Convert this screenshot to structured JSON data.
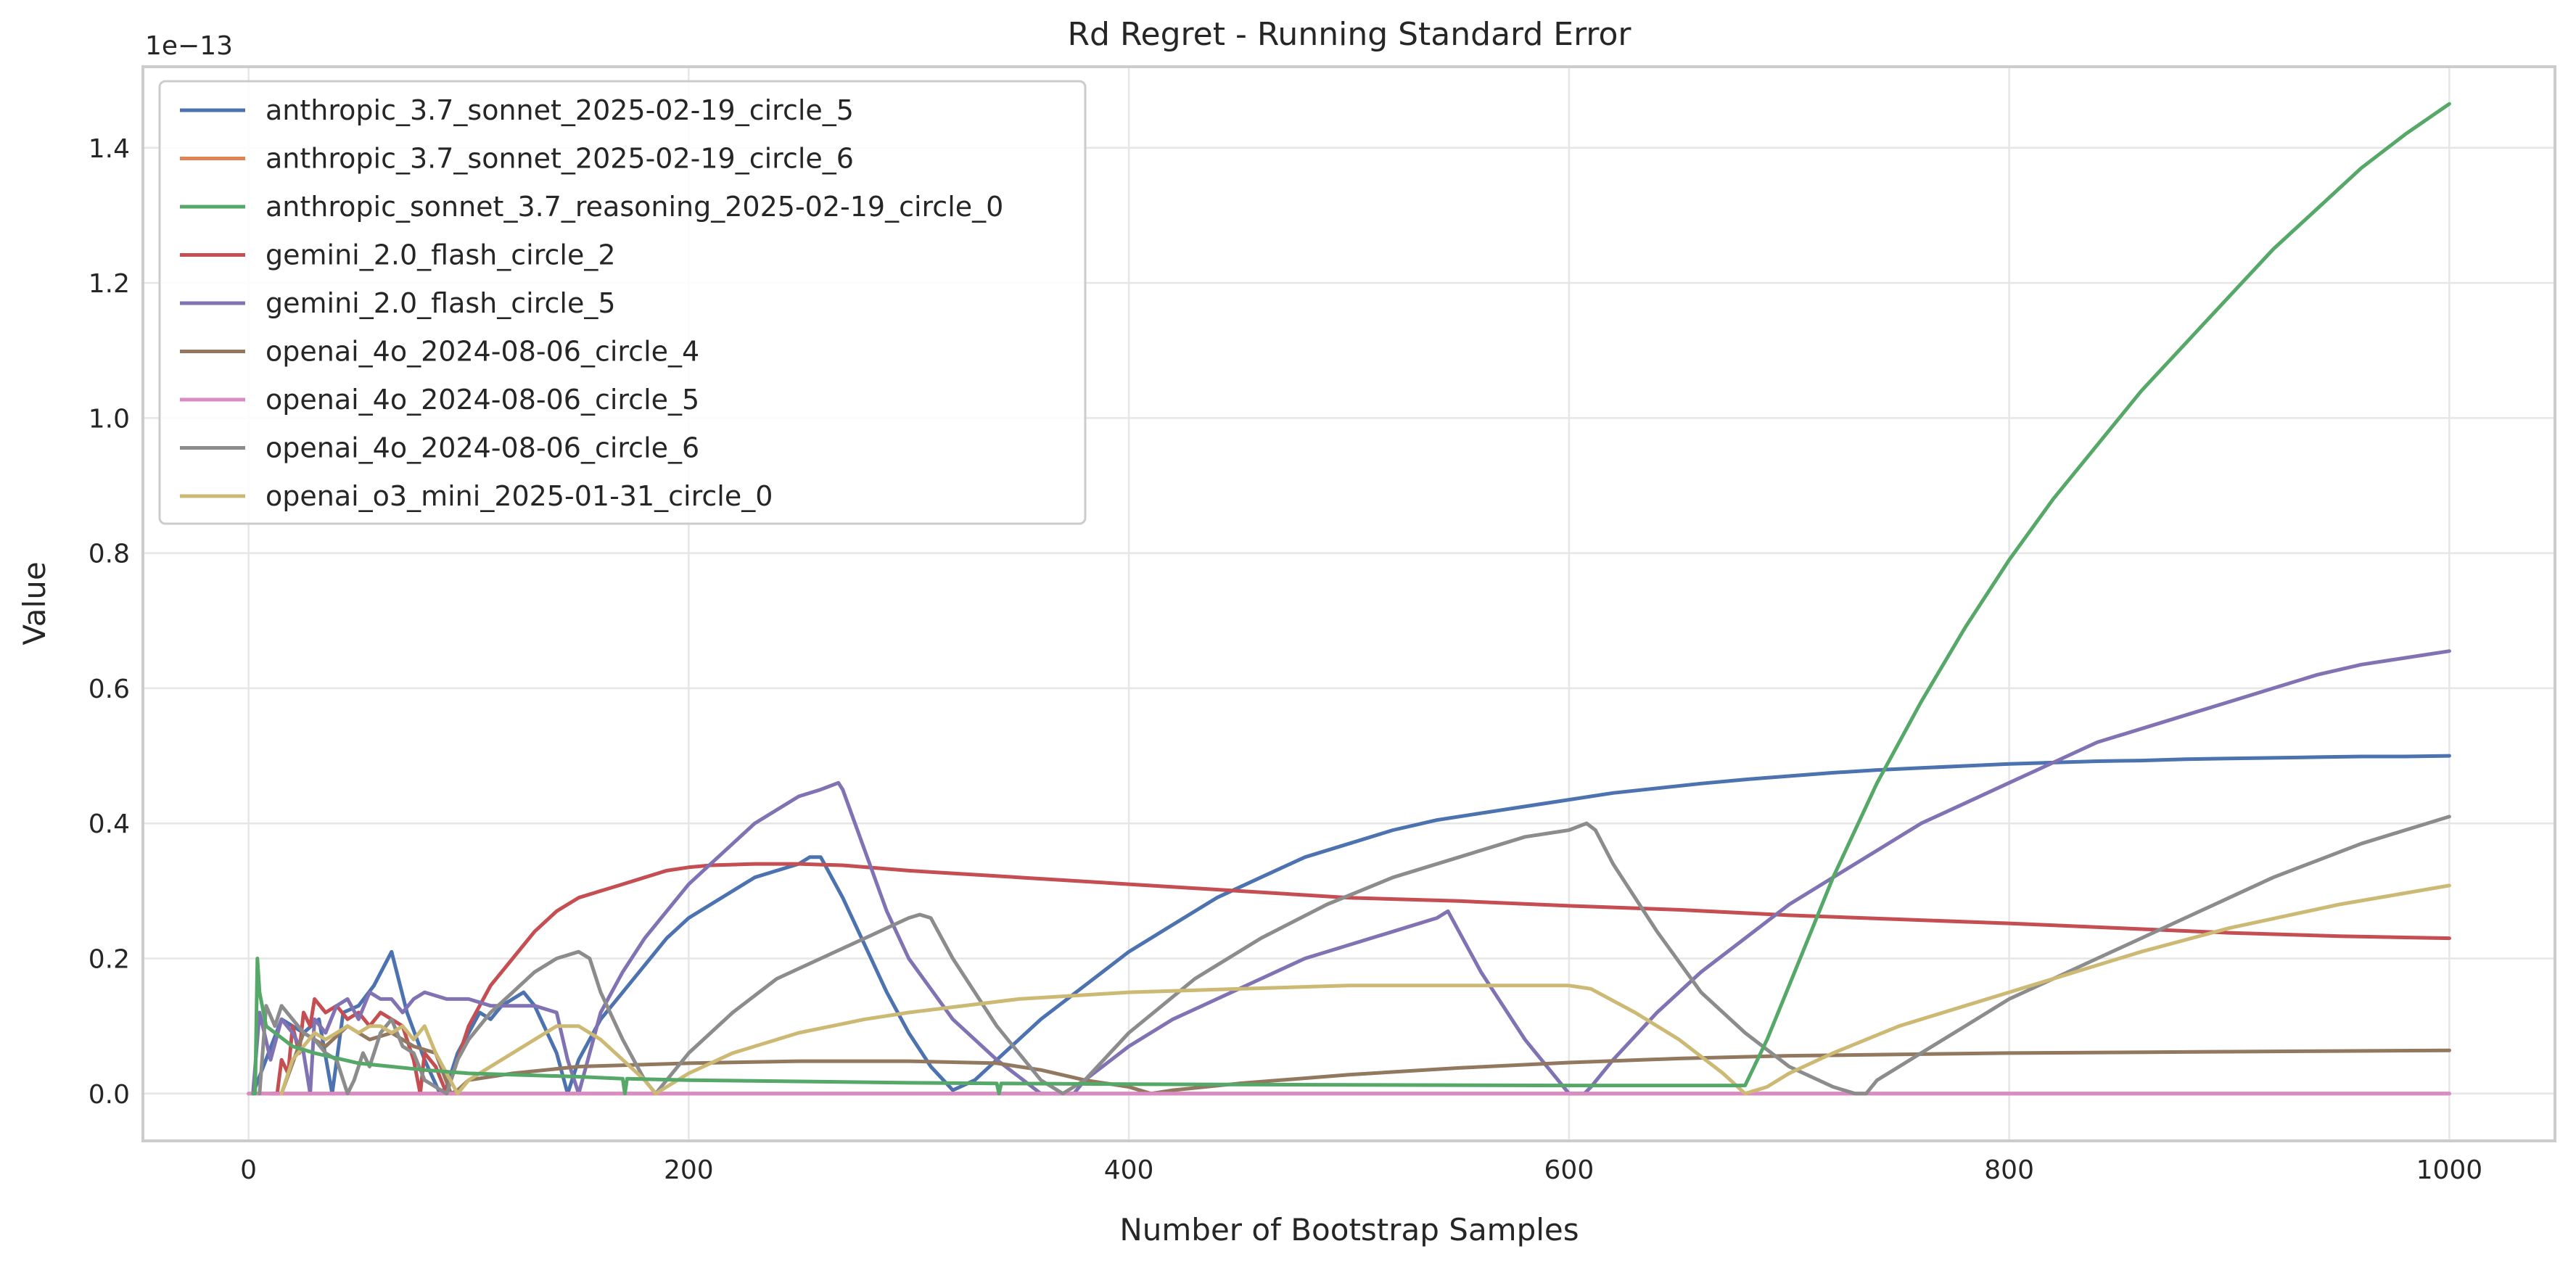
{
  "chart_data": {
    "type": "line",
    "title": "Rd Regret - Running Standard Error",
    "xlabel": "Number of Bootstrap Samples",
    "ylabel": "Value",
    "offset_label": "1e−13",
    "xlim": [
      -48,
      1048
    ],
    "ylim": [
      -0.07,
      1.52
    ],
    "grid": true,
    "legend_position": "top-left",
    "x_ticks": [
      0,
      200,
      400,
      600,
      800,
      1000
    ],
    "x_tick_labels": [
      "0",
      "200",
      "400",
      "600",
      "800",
      "1000"
    ],
    "y_ticks": [
      0.0,
      0.2,
      0.4,
      0.6,
      0.8,
      1.0,
      1.2,
      1.4
    ],
    "y_tick_labels": [
      "0.0",
      "0.2",
      "0.4",
      "0.6",
      "0.8",
      "1.0",
      "1.2",
      "1.4"
    ],
    "series": [
      {
        "name": "anthropic_3.7_sonnet_2025-02-19_circle_5",
        "color": "#4c72b0",
        "x": [
          2,
          15,
          25,
          32,
          38,
          43,
          50,
          57,
          65,
          72,
          80,
          87,
          90,
          95,
          100,
          105,
          110,
          115,
          125,
          130,
          140,
          145,
          150,
          160,
          170,
          180,
          190,
          200,
          210,
          220,
          230,
          240,
          250,
          255,
          260,
          270,
          280,
          290,
          300,
          310,
          320,
          330,
          340,
          360,
          380,
          400,
          420,
          440,
          460,
          480,
          500,
          520,
          540,
          560,
          580,
          600,
          620,
          640,
          660,
          680,
          700,
          720,
          740,
          760,
          780,
          800,
          820,
          840,
          860,
          880,
          900,
          920,
          940,
          960,
          980,
          1000
        ],
        "values": [
          0,
          0.11,
          0.09,
          0.11,
          0.0,
          0.12,
          0.13,
          0.16,
          0.21,
          0.12,
          0.05,
          0.0,
          0.01,
          0.06,
          0.09,
          0.12,
          0.11,
          0.13,
          0.15,
          0.13,
          0.06,
          0.0,
          0.05,
          0.11,
          0.15,
          0.19,
          0.23,
          0.26,
          0.28,
          0.3,
          0.32,
          0.33,
          0.34,
          0.35,
          0.35,
          0.29,
          0.22,
          0.15,
          0.09,
          0.04,
          0.005,
          0.02,
          0.05,
          0.11,
          0.16,
          0.21,
          0.25,
          0.29,
          0.32,
          0.35,
          0.37,
          0.39,
          0.405,
          0.415,
          0.425,
          0.435,
          0.445,
          0.452,
          0.459,
          0.465,
          0.47,
          0.475,
          0.479,
          0.482,
          0.485,
          0.488,
          0.49,
          0.492,
          0.493,
          0.495,
          0.496,
          0.497,
          0.498,
          0.499,
          0.499,
          0.5
        ]
      },
      {
        "name": "anthropic_3.7_sonnet_2025-02-19_circle_6",
        "color": "#dd8452",
        "x": [
          0,
          1000
        ],
        "values": [
          0,
          0
        ]
      },
      {
        "name": "anthropic_sonnet_3.7_reasoning_2025-02-19_circle_0",
        "color": "#55a868",
        "x": [
          2,
          3,
          4,
          5,
          8,
          12,
          20,
          30,
          50,
          80,
          100,
          150,
          170,
          171,
          172,
          200,
          250,
          300,
          340,
          341,
          342,
          400,
          500,
          600,
          680,
          690,
          700,
          710,
          720,
          740,
          760,
          780,
          800,
          820,
          840,
          860,
          880,
          900,
          920,
          940,
          960,
          980,
          1000
        ],
        "values": [
          0,
          0,
          0.2,
          0.15,
          0.1,
          0.09,
          0.07,
          0.06,
          0.045,
          0.035,
          0.03,
          0.025,
          0.022,
          0.0,
          0.022,
          0.02,
          0.018,
          0.016,
          0.015,
          0.0,
          0.015,
          0.014,
          0.013,
          0.012,
          0.012,
          0.08,
          0.16,
          0.24,
          0.32,
          0.46,
          0.58,
          0.69,
          0.79,
          0.88,
          0.96,
          1.04,
          1.11,
          1.18,
          1.25,
          1.31,
          1.37,
          1.42,
          1.465
        ]
      },
      {
        "name": "gemini_2.0_flash_circle_2",
        "color": "#c44e52",
        "x": [
          10,
          13,
          15,
          18,
          20,
          23,
          25,
          28,
          30,
          35,
          40,
          45,
          50,
          55,
          60,
          65,
          70,
          75,
          78,
          80,
          85,
          90,
          95,
          100,
          110,
          120,
          130,
          140,
          150,
          160,
          170,
          180,
          190,
          200,
          210,
          230,
          250,
          270,
          300,
          350,
          400,
          450,
          500,
          550,
          600,
          650,
          700,
          750,
          800,
          850,
          900,
          950,
          1000
        ],
        "values": [
          0,
          0,
          0.05,
          0.03,
          0.1,
          0.06,
          0.12,
          0.1,
          0.14,
          0.12,
          0.13,
          0.11,
          0.12,
          0.1,
          0.12,
          0.11,
          0.1,
          0.05,
          0.0,
          0.06,
          0.04,
          0.0,
          0.05,
          0.1,
          0.16,
          0.2,
          0.24,
          0.27,
          0.29,
          0.3,
          0.31,
          0.32,
          0.33,
          0.335,
          0.338,
          0.34,
          0.34,
          0.338,
          0.33,
          0.32,
          0.31,
          0.3,
          0.29,
          0.285,
          0.278,
          0.272,
          0.264,
          0.258,
          0.252,
          0.245,
          0.238,
          0.233,
          0.23
        ]
      },
      {
        "name": "gemini_2.0_flash_circle_5",
        "color": "#8172b3",
        "x": [
          2,
          5,
          10,
          15,
          20,
          25,
          28,
          30,
          35,
          40,
          45,
          50,
          55,
          60,
          65,
          70,
          75,
          80,
          90,
          100,
          110,
          120,
          130,
          140,
          145,
          150,
          155,
          160,
          170,
          180,
          190,
          200,
          210,
          220,
          230,
          240,
          250,
          260,
          268,
          270,
          280,
          290,
          300,
          320,
          340,
          360,
          370,
          375,
          380,
          400,
          420,
          440,
          460,
          480,
          500,
          520,
          540,
          545,
          550,
          560,
          580,
          600,
          607,
          610,
          620,
          640,
          660,
          680,
          700,
          720,
          740,
          760,
          780,
          800,
          820,
          840,
          860,
          880,
          900,
          920,
          940,
          960,
          980,
          1000
        ],
        "values": [
          0,
          0.12,
          0.05,
          0.11,
          0.09,
          0.06,
          0.0,
          0.11,
          0.09,
          0.13,
          0.14,
          0.11,
          0.15,
          0.14,
          0.14,
          0.12,
          0.14,
          0.15,
          0.14,
          0.14,
          0.13,
          0.13,
          0.13,
          0.12,
          0.05,
          0.0,
          0.06,
          0.12,
          0.18,
          0.23,
          0.27,
          0.31,
          0.34,
          0.37,
          0.4,
          0.42,
          0.44,
          0.45,
          0.46,
          0.45,
          0.36,
          0.27,
          0.2,
          0.11,
          0.05,
          0.0,
          0.0,
          0.0,
          0.02,
          0.07,
          0.11,
          0.14,
          0.17,
          0.2,
          0.22,
          0.24,
          0.26,
          0.27,
          0.24,
          0.18,
          0.08,
          0.0,
          0.0,
          0.01,
          0.05,
          0.12,
          0.18,
          0.23,
          0.28,
          0.32,
          0.36,
          0.4,
          0.43,
          0.46,
          0.49,
          0.52,
          0.54,
          0.56,
          0.58,
          0.6,
          0.62,
          0.635,
          0.645,
          0.655
        ]
      },
      {
        "name": "openai_4o_2024-08-06_circle_4",
        "color": "#937860",
        "x": [
          15,
          25,
          35,
          45,
          55,
          65,
          75,
          85,
          92,
          95,
          100,
          120,
          150,
          200,
          250,
          300,
          340,
          360,
          380,
          400,
          410,
          420,
          450,
          500,
          550,
          600,
          650,
          700,
          750,
          800,
          850,
          900,
          950,
          1000
        ],
        "values": [
          0,
          0.09,
          0.07,
          0.1,
          0.08,
          0.09,
          0.07,
          0.06,
          0.0,
          0.005,
          0.02,
          0.03,
          0.04,
          0.045,
          0.048,
          0.048,
          0.045,
          0.035,
          0.02,
          0.01,
          0.0,
          0.005,
          0.015,
          0.028,
          0.038,
          0.046,
          0.052,
          0.056,
          0.058,
          0.06,
          0.061,
          0.062,
          0.063,
          0.064
        ]
      },
      {
        "name": "openai_4o_2024-08-06_circle_5",
        "color": "#da8bc3",
        "x": [
          0,
          1000
        ],
        "values": [
          0,
          0
        ]
      },
      {
        "name": "openai_4o_2024-08-06_circle_6",
        "color": "#8c8c8c",
        "x": [
          5,
          8,
          12,
          15,
          20,
          25,
          30,
          35,
          40,
          45,
          48,
          52,
          55,
          60,
          65,
          70,
          75,
          80,
          85,
          90,
          95,
          100,
          110,
          120,
          130,
          140,
          150,
          155,
          160,
          170,
          180,
          185,
          190,
          200,
          220,
          240,
          260,
          280,
          300,
          305,
          310,
          320,
          340,
          360,
          370,
          380,
          400,
          430,
          460,
          490,
          520,
          550,
          580,
          600,
          608,
          612,
          620,
          640,
          660,
          680,
          700,
          720,
          730,
          735,
          740,
          760,
          780,
          800,
          820,
          840,
          860,
          880,
          900,
          920,
          940,
          960,
          980,
          1000
        ],
        "values": [
          0,
          0.13,
          0.1,
          0.13,
          0.11,
          0.09,
          0.08,
          0.06,
          0.05,
          0.0,
          0.02,
          0.06,
          0.04,
          0.09,
          0.11,
          0.07,
          0.06,
          0.02,
          0.01,
          0.0,
          0.05,
          0.08,
          0.12,
          0.15,
          0.18,
          0.2,
          0.21,
          0.2,
          0.15,
          0.08,
          0.02,
          0.0,
          0.02,
          0.06,
          0.12,
          0.17,
          0.2,
          0.23,
          0.26,
          0.265,
          0.26,
          0.2,
          0.1,
          0.02,
          0.0,
          0.02,
          0.09,
          0.17,
          0.23,
          0.28,
          0.32,
          0.35,
          0.38,
          0.39,
          0.4,
          0.39,
          0.34,
          0.24,
          0.15,
          0.09,
          0.04,
          0.01,
          0.0,
          0.0,
          0.02,
          0.06,
          0.1,
          0.14,
          0.17,
          0.2,
          0.23,
          0.26,
          0.29,
          0.32,
          0.345,
          0.37,
          0.39,
          0.41
        ]
      },
      {
        "name": "openai_o3_mini_2025-01-31_circle_0",
        "color": "#ccb974",
        "x": [
          15,
          20,
          25,
          30,
          35,
          40,
          45,
          50,
          55,
          60,
          65,
          70,
          75,
          80,
          85,
          90,
          95,
          100,
          110,
          120,
          130,
          140,
          150,
          160,
          170,
          180,
          185,
          190,
          200,
          220,
          250,
          280,
          300,
          350,
          400,
          450,
          500,
          550,
          600,
          610,
          630,
          650,
          670,
          680,
          690,
          700,
          720,
          750,
          780,
          800,
          830,
          860,
          900,
          950,
          1000
        ],
        "values": [
          0,
          0.05,
          0.07,
          0.09,
          0.08,
          0.09,
          0.1,
          0.09,
          0.1,
          0.1,
          0.09,
          0.1,
          0.08,
          0.1,
          0.06,
          0.03,
          0.0,
          0.02,
          0.04,
          0.06,
          0.08,
          0.1,
          0.1,
          0.08,
          0.05,
          0.02,
          0.0,
          0.01,
          0.03,
          0.06,
          0.09,
          0.11,
          0.12,
          0.14,
          0.15,
          0.155,
          0.16,
          0.16,
          0.16,
          0.155,
          0.12,
          0.08,
          0.03,
          0.0,
          0.01,
          0.03,
          0.06,
          0.1,
          0.13,
          0.15,
          0.18,
          0.21,
          0.245,
          0.28,
          0.308
        ]
      }
    ]
  }
}
